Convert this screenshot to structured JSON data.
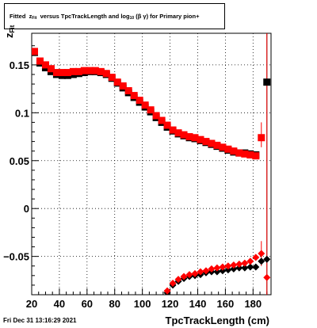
{
  "title": {
    "pre": "Fitted",
    "var": "z",
    "var_sub": "Fit",
    "mid": "versus TpcTrackLength and log",
    "log_sub": "10",
    "post": "(β γ) for Primary pion+"
  },
  "timestamp": "Fri Dec 31 13:16:29 2021",
  "chart_data": {
    "type": "scatter",
    "title": "Fitted zFit versus TpcTrackLength and log10(βγ) for Primary pion+",
    "xlabel": "TpcTrackLength (cm)",
    "ylabel": "zFit",
    "xlim": [
      20,
      193
    ],
    "ylim": [
      -0.09,
      0.183
    ],
    "xticks": [
      20,
      40,
      60,
      80,
      100,
      120,
      140,
      160,
      180
    ],
    "yticks": [
      -0.05,
      0,
      0.05,
      0.1,
      0.15
    ],
    "ytick_labels": [
      "−0.05",
      "0",
      "0.05",
      "0.1",
      "0.15"
    ],
    "grid": true,
    "series": [
      {
        "marker": "square",
        "color": "#000000",
        "points": [
          [
            22,
            0.163
          ],
          [
            26,
            0.152
          ],
          [
            30,
            0.147
          ],
          [
            34,
            0.143
          ],
          [
            38,
            0.14
          ],
          [
            42,
            0.139
          ],
          [
            46,
            0.139
          ],
          [
            50,
            0.14
          ],
          [
            54,
            0.141
          ],
          [
            58,
            0.142
          ],
          [
            62,
            0.143
          ],
          [
            66,
            0.143
          ],
          [
            70,
            0.142
          ],
          [
            74,
            0.14
          ],
          [
            78,
            0.136
          ],
          [
            82,
            0.131
          ],
          [
            86,
            0.126
          ],
          [
            90,
            0.121
          ],
          [
            94,
            0.116
          ],
          [
            98,
            0.111
          ],
          [
            102,
            0.106
          ],
          [
            106,
            0.101
          ],
          [
            110,
            0.095
          ],
          [
            114,
            0.09
          ],
          [
            118,
            0.085
          ],
          [
            122,
            0.081
          ],
          [
            126,
            0.078
          ],
          [
            130,
            0.076
          ],
          [
            134,
            0.074
          ],
          [
            138,
            0.073
          ],
          [
            142,
            0.071
          ],
          [
            146,
            0.069
          ],
          [
            150,
            0.067
          ],
          [
            154,
            0.065
          ],
          [
            158,
            0.063
          ],
          [
            162,
            0.061
          ],
          [
            166,
            0.059
          ],
          [
            170,
            0.058
          ],
          [
            174,
            0.058
          ],
          [
            178,
            0.057
          ],
          [
            182,
            0.056
          ],
          [
            190,
            0.132
          ]
        ],
        "errors": [
          [
            190,
            -0.09,
            0.183
          ]
        ]
      },
      {
        "marker": "diamond",
        "color": "#000000",
        "points": [
          [
            118,
            -0.088
          ],
          [
            122,
            -0.08
          ],
          [
            126,
            -0.076
          ],
          [
            130,
            -0.073
          ],
          [
            134,
            -0.071
          ],
          [
            138,
            -0.07
          ],
          [
            142,
            -0.069
          ],
          [
            146,
            -0.067
          ],
          [
            150,
            -0.066
          ],
          [
            154,
            -0.066
          ],
          [
            158,
            -0.065
          ],
          [
            162,
            -0.064
          ],
          [
            166,
            -0.063
          ],
          [
            170,
            -0.062
          ],
          [
            174,
            -0.062
          ],
          [
            178,
            -0.061
          ],
          [
            182,
            -0.061
          ],
          [
            186,
            -0.055
          ],
          [
            190,
            -0.053
          ]
        ],
        "errors": []
      },
      {
        "marker": "square",
        "color": "#ff0000",
        "points": [
          [
            22,
            0.164
          ],
          [
            26,
            0.154
          ],
          [
            30,
            0.15
          ],
          [
            34,
            0.146
          ],
          [
            38,
            0.142
          ],
          [
            42,
            0.142
          ],
          [
            46,
            0.142
          ],
          [
            50,
            0.143
          ],
          [
            54,
            0.143
          ],
          [
            58,
            0.144
          ],
          [
            62,
            0.144
          ],
          [
            66,
            0.144
          ],
          [
            70,
            0.143
          ],
          [
            74,
            0.141
          ],
          [
            78,
            0.137
          ],
          [
            82,
            0.132
          ],
          [
            86,
            0.128
          ],
          [
            90,
            0.123
          ],
          [
            94,
            0.118
          ],
          [
            98,
            0.113
          ],
          [
            102,
            0.108
          ],
          [
            106,
            0.103
          ],
          [
            110,
            0.097
          ],
          [
            114,
            0.092
          ],
          [
            118,
            0.087
          ],
          [
            122,
            0.082
          ],
          [
            126,
            0.079
          ],
          [
            130,
            0.077
          ],
          [
            134,
            0.075
          ],
          [
            138,
            0.074
          ],
          [
            142,
            0.072
          ],
          [
            146,
            0.07
          ],
          [
            150,
            0.068
          ],
          [
            154,
            0.066
          ],
          [
            158,
            0.064
          ],
          [
            162,
            0.062
          ],
          [
            166,
            0.06
          ],
          [
            170,
            0.058
          ],
          [
            174,
            0.057
          ],
          [
            178,
            0.056
          ],
          [
            182,
            0.055
          ],
          [
            186,
            0.074
          ]
        ],
        "errors": [
          [
            186,
            0.064,
            0.09
          ]
        ]
      },
      {
        "marker": "diamond",
        "color": "#ff0000",
        "points": [
          [
            118,
            -0.086
          ],
          [
            122,
            -0.078
          ],
          [
            126,
            -0.074
          ],
          [
            130,
            -0.071
          ],
          [
            134,
            -0.069
          ],
          [
            138,
            -0.068
          ],
          [
            142,
            -0.066
          ],
          [
            146,
            -0.065
          ],
          [
            150,
            -0.063
          ],
          [
            154,
            -0.062
          ],
          [
            158,
            -0.061
          ],
          [
            162,
            -0.06
          ],
          [
            166,
            -0.059
          ],
          [
            170,
            -0.058
          ],
          [
            174,
            -0.057
          ],
          [
            178,
            -0.055
          ],
          [
            182,
            -0.051
          ],
          [
            186,
            -0.047
          ],
          [
            190,
            -0.072
          ]
        ],
        "errors": [
          [
            186,
            -0.06,
            -0.034
          ],
          [
            190,
            -0.09,
            0.183
          ]
        ]
      }
    ]
  }
}
